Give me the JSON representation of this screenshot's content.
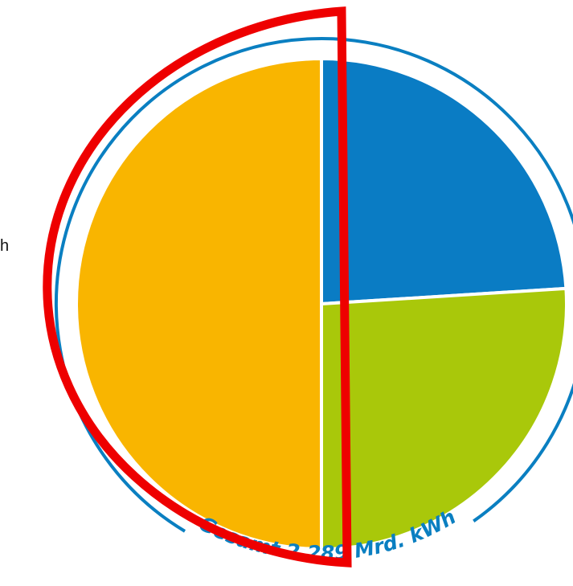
{
  "chart_data": {
    "type": "pie",
    "values": [
      24,
      26,
      50
    ],
    "colors": [
      "#0a7cc4",
      "#a9c80a",
      "#f9b500"
    ],
    "annotation": "Gesamt 2.289 Mrd. kWh",
    "side_text": "h",
    "ring_color": "#0a7fc1"
  }
}
